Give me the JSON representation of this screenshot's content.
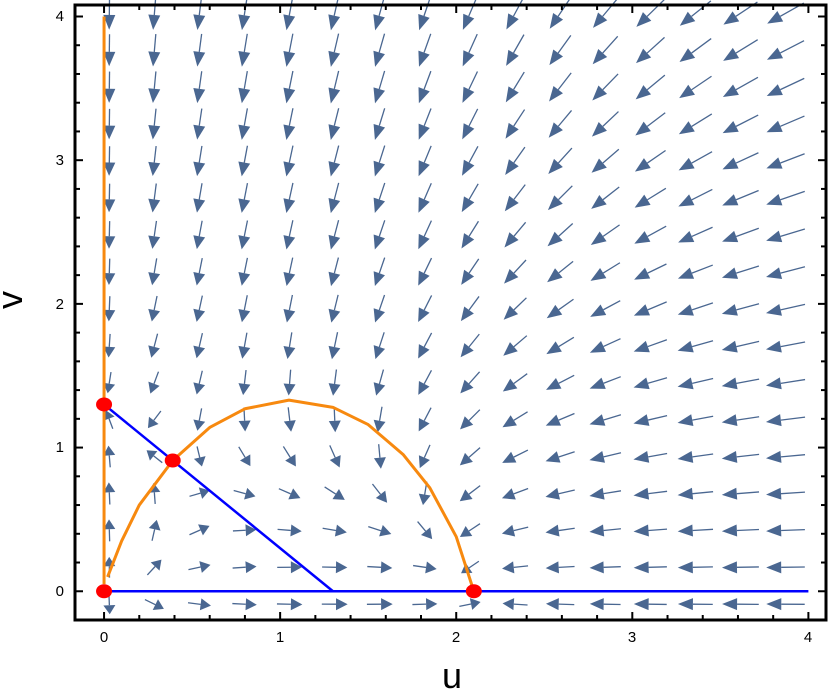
{
  "chart_data": {
    "type": "vector-field",
    "xlabel": "u",
    "ylabel": "v",
    "xlim": [
      -0.165,
      4.1
    ],
    "ylim": [
      -0.2,
      4.08
    ],
    "xticks": [
      "0",
      "1",
      "2",
      "3",
      "4"
    ],
    "yticks": [
      "0",
      "1",
      "2",
      "3",
      "4"
    ],
    "grid": false,
    "colors": {
      "arrows": "#4a6791",
      "u_nullcline": "#f7890f",
      "v_nullcline": "#0000ff",
      "equilibria": "#ff0000"
    },
    "v_nullclines": [
      {
        "points": [
          [
            0,
            1.3
          ],
          [
            1.3,
            0
          ]
        ]
      },
      {
        "points": [
          [
            0,
            0
          ],
          [
            4,
            0
          ]
        ]
      }
    ],
    "u_nullclines": [
      {
        "points": [
          [
            0,
            0.05
          ],
          [
            0,
            4.0
          ]
        ]
      },
      {
        "points": [
          [
            0.02,
            0.1
          ],
          [
            0.1,
            0.35
          ],
          [
            0.2,
            0.6
          ],
          [
            0.39,
            0.91
          ],
          [
            0.6,
            1.14
          ],
          [
            0.8,
            1.27
          ],
          [
            1.05,
            1.33
          ],
          [
            1.3,
            1.28
          ],
          [
            1.5,
            1.16
          ],
          [
            1.7,
            0.95
          ],
          [
            1.85,
            0.72
          ],
          [
            2.0,
            0.38
          ],
          [
            2.1,
            0.0
          ]
        ]
      }
    ],
    "equilibria": [
      [
        0,
        0
      ],
      [
        0,
        1.3
      ],
      [
        0.39,
        0.91
      ],
      [
        2.1,
        0
      ]
    ]
  }
}
